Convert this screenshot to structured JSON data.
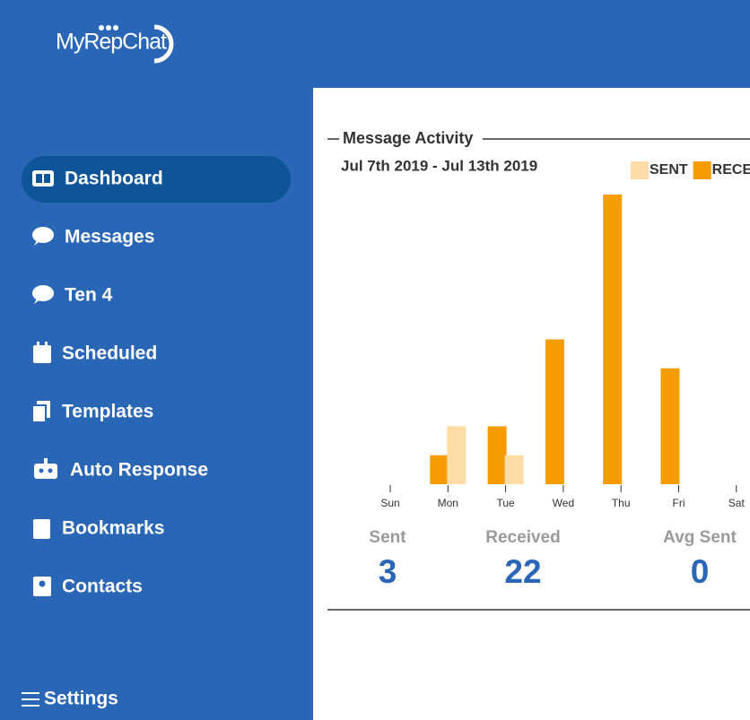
{
  "logo": {
    "text": "MyRepChat"
  },
  "nav": [
    "Dashboard",
    "Messages",
    "Ten 4",
    "Scheduled",
    "Templates",
    "Auto Response",
    "Bookmarks",
    "Contacts"
  ],
  "settings": "Settings",
  "card": {
    "title": "Message Activity",
    "date_range": "Jul 7th 2019 - Jul 13th 2019"
  },
  "chart_data": {
    "type": "bar",
    "categories": [
      "Sun",
      "Mon",
      "Tue",
      "Wed",
      "Thu",
      "Fri",
      "Sat"
    ],
    "series": [
      {
        "name": "SENT",
        "color": "#fddca6",
        "values": [
          0,
          2,
          1,
          0,
          0,
          0,
          0
        ]
      },
      {
        "name": "RECEIVED",
        "color": "#f59c00",
        "values": [
          0,
          1,
          2,
          5,
          10,
          4,
          0
        ]
      }
    ],
    "ylim": [
      0,
      10
    ]
  },
  "stats": [
    {
      "label": "Sent",
      "value": 3
    },
    {
      "label": "Received",
      "value": 22
    },
    {
      "label": "Avg Sent",
      "value": 0
    }
  ]
}
